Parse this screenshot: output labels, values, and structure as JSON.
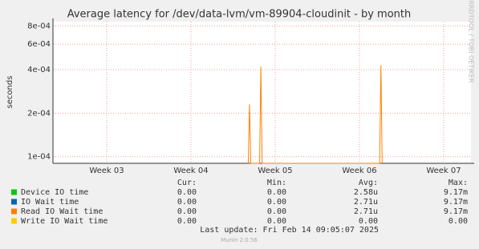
{
  "chart_data": {
    "type": "line",
    "title": "Average latency for /dev/data-lvm/vm-89904-cloudinit - by month",
    "y_label": "seconds",
    "side_text": "RRDTOOL / TOBI OETIKER",
    "log_y": true,
    "grid": true,
    "xlim": [
      2.362,
      7.324
    ],
    "xticks": [
      {
        "value": 3,
        "label": "Week 03"
      },
      {
        "value": 4,
        "label": "Week 04"
      },
      {
        "value": 5,
        "label": "Week 05"
      },
      {
        "value": 6,
        "label": "Week 06"
      },
      {
        "value": 7,
        "label": "Week 07"
      }
    ],
    "ylim": [
      9e-05,
      0.00086
    ],
    "yticks": [
      {
        "value": 0.0001,
        "label": "1e-04"
      },
      {
        "value": 0.0002,
        "label": "2e-04"
      },
      {
        "value": 0.0004,
        "label": "4e-04"
      },
      {
        "value": 0.0006,
        "label": "6e-04"
      },
      {
        "value": 0.0008,
        "label": "8e-04"
      }
    ],
    "stat_headers": [
      "Cur:",
      "Min:",
      "Avg:",
      "Max:"
    ],
    "series": [
      {
        "name": "Device IO time",
        "color": "#00cc00",
        "x": [],
        "values": [],
        "stats": [
          "0.00",
          "0.00",
          "2.58u",
          "9.17m"
        ]
      },
      {
        "name": "IO Wait time",
        "color": "#0066b3",
        "x": [],
        "values": [],
        "stats": [
          "0.00",
          "0.00",
          "2.71u",
          "9.17m"
        ]
      },
      {
        "name": "Read IO Wait time",
        "color": "#ff8000",
        "x": [
          4.68,
          4.695,
          4.71,
          4.815,
          4.83,
          4.845,
          6.24,
          6.255,
          6.27
        ],
        "values": [
          9e-05,
          0.00023,
          9e-05,
          9e-05,
          0.00042,
          9e-05,
          9e-05,
          0.00043,
          9e-05
        ],
        "stats": [
          "0.00",
          "0.00",
          "2.71u",
          "9.17m"
        ]
      },
      {
        "name": "Write IO Wait time",
        "color": "#ffcc00",
        "x": [],
        "values": [],
        "stats": [
          "0.00",
          "0.00",
          "0.00",
          "0.00"
        ]
      }
    ],
    "last_update": "Last update: Fri Feb 14 09:05:07 2025",
    "footer": "Munin 2.0.56"
  }
}
